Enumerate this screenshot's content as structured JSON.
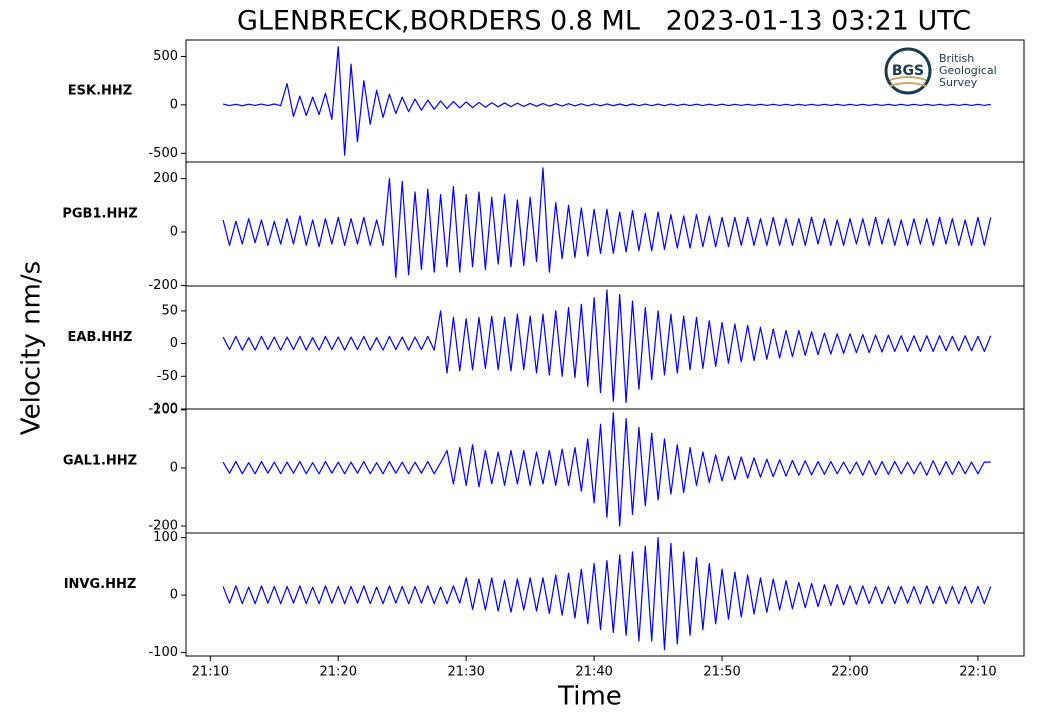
{
  "chart_data": {
    "type": "line",
    "title": "GLENBRECK,BORDERS 0.8 ML   2023-01-13 03:21 UTC",
    "xlabel": "Time",
    "ylabel": "Velocity nm/s",
    "logo": {
      "abbr": "BGS",
      "lines": [
        "British",
        "Geological",
        "Survey"
      ]
    },
    "xlim": [
      1268.1,
      1333.6
    ],
    "xticks": [
      {
        "value": 1270,
        "label": "21:10"
      },
      {
        "value": 1280,
        "label": "21:20"
      },
      {
        "value": 1290,
        "label": "21:30"
      },
      {
        "value": 1300,
        "label": "21:40"
      },
      {
        "value": 1310,
        "label": "21:50"
      },
      {
        "value": 1320,
        "label": "22:00"
      },
      {
        "value": 1330,
        "label": "22:10"
      }
    ],
    "x": [
      1271,
      1271.5,
      1272,
      1272.5,
      1273,
      1273.5,
      1274,
      1274.5,
      1275,
      1275.5,
      1276,
      1276.5,
      1277,
      1277.5,
      1278,
      1278.5,
      1279,
      1279.5,
      1280,
      1280.5,
      1281,
      1281.5,
      1282,
      1282.5,
      1283,
      1283.5,
      1284,
      1284.5,
      1285,
      1285.5,
      1286,
      1286.5,
      1287,
      1287.5,
      1288,
      1288.5,
      1289,
      1289.5,
      1290,
      1290.5,
      1291,
      1291.5,
      1292,
      1292.5,
      1293,
      1293.5,
      1294,
      1294.5,
      1295,
      1295.5,
      1296,
      1296.5,
      1297,
      1297.5,
      1298,
      1298.5,
      1299,
      1299.5,
      1300,
      1300.5,
      1301,
      1301.5,
      1302,
      1302.5,
      1303,
      1303.5,
      1304,
      1304.5,
      1305,
      1305.5,
      1306,
      1306.5,
      1307,
      1307.5,
      1308,
      1308.5,
      1309,
      1309.5,
      1310,
      1310.5,
      1311,
      1311.5,
      1312,
      1312.5,
      1313,
      1313.5,
      1314,
      1314.5,
      1315,
      1315.5,
      1316,
      1316.5,
      1317,
      1317.5,
      1318,
      1318.5,
      1319,
      1319.5,
      1320,
      1320.5,
      1321,
      1321.5,
      1322,
      1322.5,
      1323,
      1323.5,
      1324,
      1324.5,
      1325,
      1325.5,
      1326,
      1326.5,
      1327,
      1327.5,
      1328,
      1328.5,
      1329,
      1329.5,
      1330,
      1330.5,
      1331
    ],
    "series": [
      {
        "name": "ESK.HHZ",
        "color": "#0000ff",
        "ylim": [
          -590,
          670
        ],
        "yticks": [
          -500,
          0,
          500
        ],
        "values": [
          8,
          -7,
          6,
          -9,
          7,
          -6,
          8,
          -7,
          9,
          -8,
          220,
          -120,
          90,
          -110,
          80,
          -100,
          120,
          -150,
          600,
          -520,
          420,
          -380,
          250,
          -200,
          150,
          -130,
          110,
          -90,
          80,
          -70,
          60,
          -55,
          50,
          -45,
          40,
          -38,
          35,
          -32,
          30,
          -28,
          25,
          -24,
          22,
          -20,
          20,
          -18,
          18,
          -16,
          15,
          -15,
          14,
          -13,
          12,
          -12,
          12,
          -11,
          11,
          -10,
          10,
          -10,
          10,
          -9,
          9,
          -9,
          9,
          -8,
          8,
          -8,
          8,
          -8,
          8,
          -7,
          7,
          -7,
          7,
          -7,
          7,
          -7,
          7,
          -7,
          6,
          -6,
          6,
          -6,
          6,
          -6,
          6,
          -6,
          6,
          -6,
          6,
          -6,
          6,
          -6,
          6,
          -6,
          6,
          -6,
          6,
          -6,
          6,
          -6,
          6,
          -6,
          6,
          -6,
          6,
          -6,
          6,
          -6,
          6,
          -6,
          6,
          -6,
          6,
          -6,
          6,
          -6,
          6,
          -6,
          5
        ]
      },
      {
        "name": "PGB1.HHZ",
        "color": "#0000ff",
        "ylim": [
          -202,
          262
        ],
        "yticks": [
          -200,
          0,
          200
        ],
        "values": [
          45,
          -50,
          40,
          -45,
          50,
          -40,
          45,
          -50,
          40,
          -45,
          50,
          -45,
          60,
          -50,
          45,
          -55,
          50,
          -45,
          55,
          -50,
          50,
          -45,
          55,
          -50,
          45,
          -50,
          200,
          -170,
          190,
          -160,
          150,
          -140,
          160,
          -150,
          140,
          -130,
          170,
          -150,
          140,
          -130,
          150,
          -140,
          130,
          -120,
          140,
          -130,
          120,
          -125,
          130,
          -110,
          240,
          -150,
          110,
          -100,
          100,
          -95,
          90,
          -90,
          85,
          -80,
          85,
          -80,
          75,
          -75,
          80,
          -70,
          70,
          -70,
          75,
          -65,
          65,
          -60,
          60,
          -60,
          65,
          -55,
          60,
          -55,
          55,
          -55,
          55,
          -50,
          55,
          -50,
          50,
          -50,
          55,
          -50,
          50,
          -50,
          50,
          -50,
          55,
          -45,
          50,
          -50,
          45,
          -50,
          50,
          -45,
          50,
          -50,
          55,
          -45,
          50,
          -50,
          45,
          -50,
          50,
          -45,
          50,
          -50,
          55,
          -45,
          50,
          -50,
          45,
          -50,
          55,
          -50,
          55
        ]
      },
      {
        "name": "EAB.HHZ",
        "color": "#0000ff",
        "ylim": [
          -100,
          88
        ],
        "yticks": [
          -100,
          -50,
          0,
          50
        ],
        "values": [
          10,
          -9,
          11,
          -10,
          9,
          -10,
          11,
          -9,
          10,
          -10,
          10,
          -9,
          11,
          -10,
          9,
          -10,
          11,
          -9,
          10,
          -10,
          10,
          -9,
          11,
          -10,
          9,
          -10,
          11,
          -9,
          10,
          -10,
          10,
          -9,
          11,
          -10,
          50,
          -45,
          40,
          -42,
          38,
          -40,
          40,
          -38,
          42,
          -40,
          40,
          -42,
          45,
          -40,
          42,
          -45,
          45,
          -48,
          50,
          -50,
          55,
          -52,
          60,
          -65,
          70,
          -75,
          82,
          -88,
          75,
          -90,
          65,
          -70,
          55,
          -55,
          50,
          -48,
          45,
          -45,
          42,
          -40,
          40,
          -38,
          35,
          -35,
          32,
          -30,
          30,
          -28,
          28,
          -26,
          25,
          -24,
          22,
          -22,
          20,
          -20,
          20,
          -18,
          18,
          -17,
          16,
          -16,
          15,
          -15,
          15,
          -14,
          14,
          -14,
          13,
          -13,
          13,
          -12,
          12,
          -12,
          12,
          -12,
          12,
          -12,
          12,
          -11,
          11,
          -11,
          12,
          -11,
          11,
          -12,
          12
        ]
      },
      {
        "name": "GAL1.HHZ",
        "color": "#0000ff",
        "ylim": [
          -224,
          203
        ],
        "yticks": [
          -200,
          0,
          200
        ],
        "values": [
          20,
          -18,
          22,
          -20,
          18,
          -20,
          22,
          -18,
          20,
          -20,
          20,
          -18,
          22,
          -20,
          18,
          -20,
          22,
          -18,
          20,
          -20,
          20,
          -18,
          22,
          -20,
          18,
          -20,
          22,
          -18,
          20,
          -20,
          20,
          -18,
          22,
          -20,
          18,
          60,
          -55,
          70,
          -60,
          80,
          -65,
          60,
          -55,
          55,
          -60,
          60,
          -55,
          60,
          -60,
          55,
          -55,
          60,
          -60,
          65,
          -60,
          70,
          -80,
          100,
          -120,
          150,
          -170,
          190,
          -200,
          170,
          -160,
          140,
          -130,
          120,
          -110,
          100,
          -90,
          80,
          -85,
          70,
          -60,
          55,
          -50,
          45,
          -45,
          40,
          -40,
          38,
          -35,
          35,
          -32,
          30,
          -30,
          28,
          -28,
          26,
          -25,
          25,
          -24,
          22,
          -22,
          22,
          -20,
          20,
          -20,
          20,
          -25,
          25,
          -24,
          22,
          -22,
          22,
          -20,
          20,
          -20,
          20,
          -25,
          25,
          -24,
          22,
          -22,
          22,
          -20,
          20,
          -20,
          20,
          20
        ]
      },
      {
        "name": "INVG.HHZ",
        "color": "#0000ff",
        "ylim": [
          -106,
          108
        ],
        "yticks": [
          -100,
          0,
          100
        ],
        "values": [
          15,
          -14,
          16,
          -15,
          14,
          -15,
          16,
          -14,
          15,
          -15,
          15,
          -14,
          16,
          -15,
          14,
          -15,
          16,
          -14,
          15,
          -15,
          15,
          -14,
          16,
          -15,
          14,
          -15,
          16,
          -14,
          15,
          -15,
          15,
          -14,
          16,
          -15,
          14,
          -15,
          16,
          -14,
          30,
          -25,
          28,
          -26,
          30,
          -28,
          26,
          -30,
          28,
          -26,
          30,
          -28,
          30,
          -32,
          35,
          -35,
          38,
          -40,
          45,
          -50,
          55,
          -60,
          60,
          -65,
          70,
          -70,
          75,
          -80,
          85,
          -80,
          100,
          -95,
          90,
          -85,
          75,
          -70,
          65,
          -60,
          55,
          -50,
          45,
          -42,
          40,
          -38,
          35,
          -33,
          30,
          -30,
          28,
          -26,
          25,
          -24,
          22,
          -22,
          20,
          -20,
          18,
          -18,
          18,
          -17,
          16,
          -16,
          16,
          -15,
          15,
          -15,
          15,
          -15,
          15,
          -14,
          15,
          -15,
          16,
          -15,
          15,
          -15,
          15,
          -15,
          15,
          -14,
          15,
          -15,
          15
        ]
      }
    ]
  }
}
